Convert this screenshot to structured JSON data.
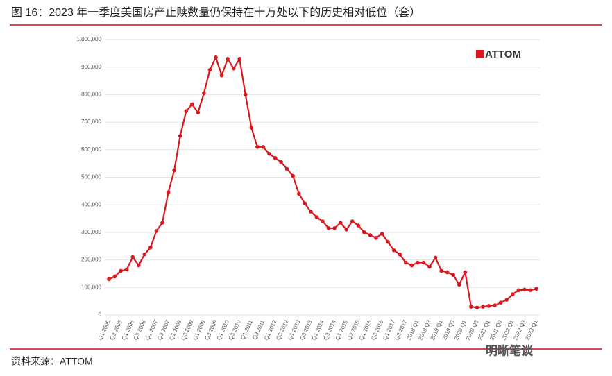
{
  "chart_data": {
    "type": "line",
    "title": "图 16：2023 年一季度美国房产止赎数量仍保持在十万处以下的历史相对低位（套）",
    "source": "资料来源：ATTOM",
    "logo": "ATTOM",
    "watermark": "明晰笔谈",
    "color": "#d7191f",
    "grid": true,
    "categories": [
      "Q1 2005",
      null,
      "Q3 2005",
      null,
      "Q1 2006",
      null,
      "Q3 2006",
      null,
      "Q1 2007",
      null,
      "Q3 2007",
      null,
      "Q1 2008",
      null,
      "Q3 2008",
      null,
      "Q1 2009",
      null,
      "Q3 2009",
      null,
      "Q1 2010",
      null,
      "Q3 2010",
      null,
      "Q1 2011",
      null,
      "Q3 2011",
      null,
      "Q1 2012",
      null,
      "Q3 2012",
      null,
      "Q1 2013",
      null,
      "Q3 2013",
      null,
      "Q1 2014",
      null,
      "Q3 2014",
      null,
      "Q1 2015",
      null,
      "Q3 2015",
      null,
      "Q1 2016",
      null,
      "Q3 2016",
      null,
      "Q1 2017",
      null,
      "Q3 2017",
      null,
      "2018 Q1",
      null,
      "2018 Q3",
      null,
      "2019 Q1",
      null,
      "2019 Q3",
      null,
      "2020 Q1",
      null,
      "2020 Q3",
      null,
      "2021 Q1",
      null,
      "2021 Q3",
      null,
      "2022 Q1",
      null,
      "2022 Q3",
      null,
      "2023 Q1"
    ],
    "values": [
      130000,
      140000,
      160000,
      165000,
      210000,
      180000,
      220000,
      245000,
      305000,
      335000,
      445000,
      525000,
      650000,
      740000,
      765000,
      735000,
      805000,
      890000,
      935000,
      870000,
      930000,
      895000,
      930000,
      800000,
      680000,
      610000,
      610000,
      585000,
      570000,
      555000,
      530000,
      505000,
      440000,
      405000,
      375000,
      355000,
      340000,
      315000,
      315000,
      335000,
      310000,
      340000,
      325000,
      300000,
      290000,
      280000,
      295000,
      265000,
      235000,
      220000,
      190000,
      180000,
      190000,
      190000,
      175000,
      208000,
      160000,
      155000,
      145000,
      110000,
      155000,
      30000,
      27000,
      30000,
      33000,
      35000,
      45000,
      55000,
      75000,
      90000,
      92000,
      90000,
      95000
    ],
    "ylim": [
      0,
      1000000
    ],
    "yticks": [
      0,
      {
        "value": 100000,
        "label": "100,000"
      },
      {
        "value": 200000,
        "label": "200,000"
      },
      {
        "value": 300000,
        "label": "300,000"
      },
      {
        "value": 400000,
        "label": "400,000"
      },
      {
        "value": 500000,
        "label": "500,000"
      },
      {
        "value": 600000,
        "label": "600,000"
      },
      {
        "value": 700000,
        "label": "700,000"
      },
      {
        "value": 800000,
        "label": "800,000"
      },
      {
        "value": 900000,
        "label": "900,000"
      },
      {
        "value": 1000000,
        "label": "1,000,000"
      }
    ]
  }
}
